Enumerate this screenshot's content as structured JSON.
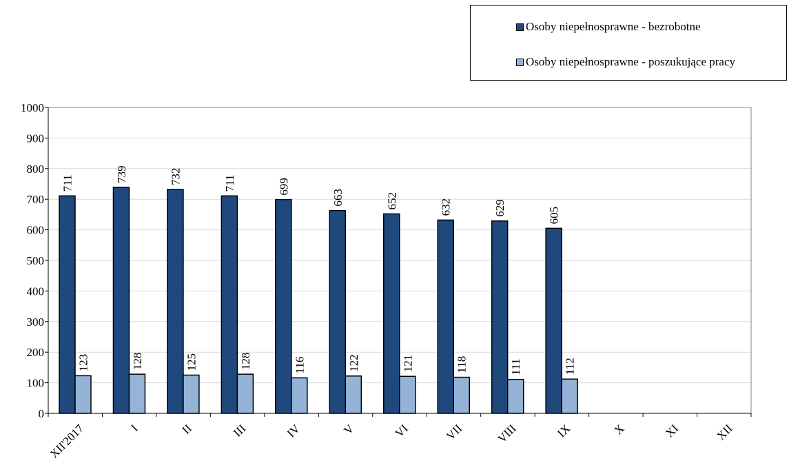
{
  "chart_data": {
    "type": "bar",
    "title": "",
    "xlabel": "",
    "ylabel": "",
    "ylim": [
      0,
      1000
    ],
    "yticks": [
      0,
      100,
      200,
      300,
      400,
      500,
      600,
      700,
      800,
      900,
      1000
    ],
    "grid": true,
    "legend_position": "top-right",
    "categories": [
      "XII'2017",
      "I",
      "II",
      "III",
      "IV",
      "V",
      "VI",
      "VII",
      "VIII",
      "IX",
      "X",
      "XI",
      "XII"
    ],
    "series": [
      {
        "name": "Osoby niepełnosprawne - bezrobotne",
        "color": "#1f497d",
        "values": [
          711,
          739,
          732,
          711,
          699,
          663,
          652,
          632,
          629,
          605,
          null,
          null,
          null
        ]
      },
      {
        "name": "Osoby niepełnosprawne - poszukujące pracy",
        "color": "#95b3d7",
        "values": [
          123,
          128,
          125,
          128,
          116,
          122,
          121,
          118,
          111,
          112,
          null,
          null,
          null
        ]
      }
    ]
  }
}
